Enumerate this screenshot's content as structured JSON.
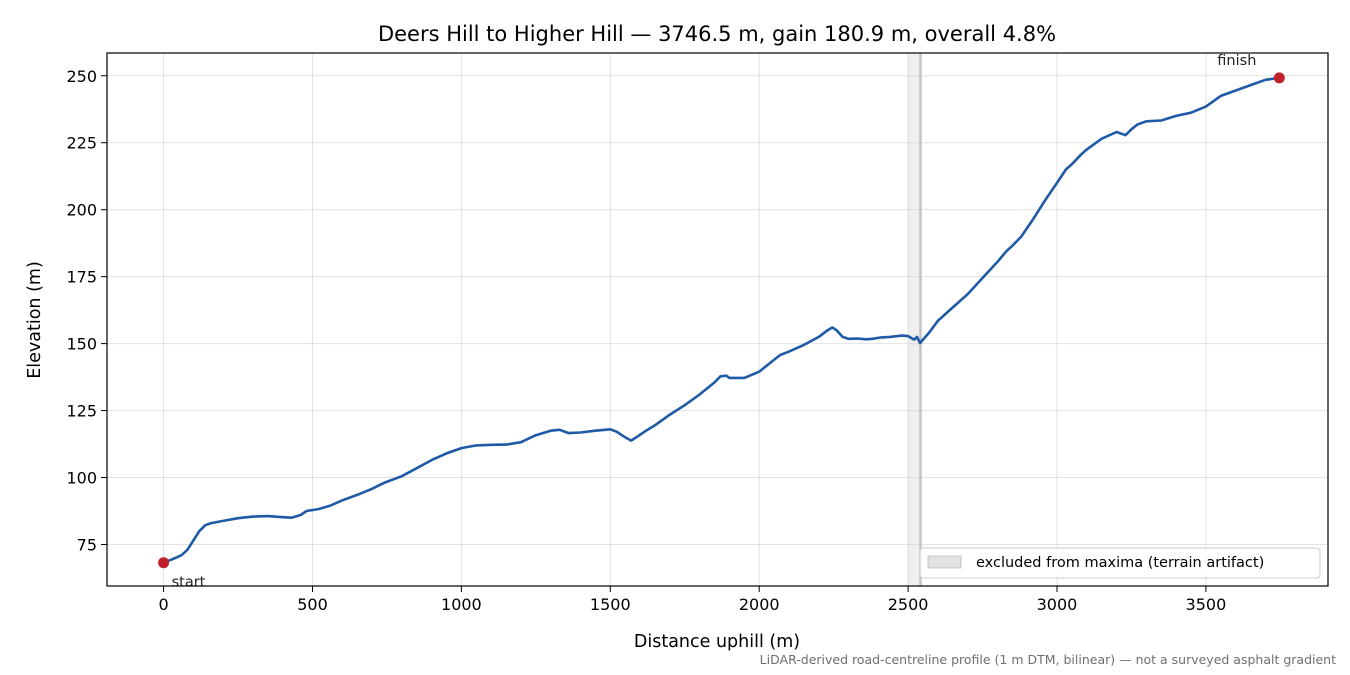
{
  "chart_data": {
    "type": "line",
    "title": "Deers Hill to Higher Hill — 3746.5 m, gain 180.9 m, overall 4.8%",
    "xlabel": "Distance uphill (m)",
    "ylabel": "Elevation (m)",
    "xlim": [
      -190,
      3910
    ],
    "ylim": [
      59.5,
      258.5
    ],
    "xticks": [
      0,
      500,
      1000,
      1500,
      2000,
      2500,
      3000,
      3500
    ],
    "yticks": [
      75,
      100,
      125,
      150,
      175,
      200,
      225,
      250
    ],
    "grid": true,
    "series": [
      {
        "color": "#1f5aa6",
        "x": [
          0,
          30,
          60,
          80,
          100,
          120,
          140,
          160,
          200,
          250,
          300,
          350,
          400,
          430,
          460,
          480,
          520,
          560,
          600,
          650,
          700,
          740,
          800,
          850,
          900,
          950,
          1000,
          1050,
          1100,
          1150,
          1200,
          1250,
          1300,
          1330,
          1360,
          1400,
          1450,
          1500,
          1520,
          1550,
          1570,
          1590,
          1620,
          1650,
          1700,
          1750,
          1800,
          1850,
          1870,
          1890,
          1900,
          1950,
          2000,
          2050,
          2070,
          2100,
          2150,
          2200,
          2230,
          2245,
          2260,
          2280,
          2300,
          2330,
          2360,
          2380,
          2410,
          2440,
          2480,
          2500,
          2520,
          2530,
          2540,
          2550,
          2570,
          2600,
          2650,
          2700,
          2750,
          2800,
          2830,
          2850,
          2880,
          2920,
          2960,
          3000,
          3030,
          3050,
          3080,
          3100,
          3150,
          3200,
          3230,
          3250,
          3270,
          3300,
          3350,
          3400,
          3450,
          3500,
          3550,
          3600,
          3650,
          3700,
          3746.5
        ],
        "y": [
          68.2,
          69.5,
          71,
          73,
          76.5,
          80,
          82.2,
          83,
          83.8,
          84.8,
          85.4,
          85.6,
          85.2,
          85,
          86,
          87.5,
          88.2,
          89.5,
          91.5,
          93.5,
          95.8,
          98,
          100.5,
          103.5,
          106.5,
          109,
          111,
          112,
          112.2,
          112.3,
          113.2,
          115.8,
          117.5,
          117.8,
          116.6,
          116.8,
          117.5,
          118,
          117.2,
          115,
          113.8,
          115.2,
          117.5,
          119.5,
          123.5,
          127,
          131,
          135.5,
          137.8,
          138,
          137.2,
          137.2,
          139.5,
          144,
          145.7,
          147,
          149.5,
          152.5,
          155,
          156,
          155,
          152.5,
          151.8,
          151.9,
          151.6,
          151.8,
          152.3,
          152.5,
          153,
          152.8,
          151.5,
          152.5,
          150.2,
          151.5,
          154,
          158.5,
          163.5,
          168.5,
          174.5,
          180.5,
          184.5,
          186.5,
          190,
          196.5,
          203.5,
          210,
          215,
          217,
          220.5,
          222.5,
          226.5,
          229,
          227.8,
          230,
          231.8,
          233,
          233.3,
          235,
          236.2,
          238.5,
          242.5,
          244.5,
          246.5,
          248.5,
          249.2
        ]
      }
    ],
    "markers": [
      {
        "label": "start",
        "x": 0,
        "y": 68.2,
        "color": "#c0202a"
      },
      {
        "label": "finish",
        "x": 3746.5,
        "y": 249.2,
        "color": "#c0202a"
      }
    ],
    "excluded_region": {
      "label": "excluded from maxima (terrain artifact)",
      "x_start": 2500,
      "x_end": 2545,
      "color": "#d0d0d0"
    },
    "legend_placement": "bottom-right",
    "footnote": "LiDAR-derived road-centreline profile (1 m DTM, bilinear) — not a surveyed asphalt gradient"
  }
}
